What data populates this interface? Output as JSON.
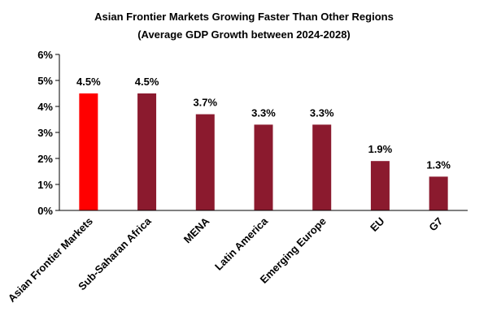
{
  "chart_data": {
    "type": "bar",
    "title": "Asian Frontier Markets Growing Faster Than Other Regions",
    "subtitle": "(Average GDP Growth between 2024-2028)",
    "categories": [
      "Asian Frontier Markets",
      "Sub-Saharan Africa",
      "MENA",
      "Latin America",
      "Emerging Europe",
      "EU",
      "G7"
    ],
    "values": [
      4.5,
      4.5,
      3.7,
      3.3,
      3.3,
      1.9,
      1.3
    ],
    "data_labels": [
      "4.5%",
      "4.5%",
      "3.7%",
      "3.3%",
      "3.3%",
      "1.9%",
      "1.3%"
    ],
    "ylim": [
      0,
      6
    ],
    "yticks": [
      0,
      1,
      2,
      3,
      4,
      5,
      6
    ],
    "ytick_labels": [
      "0%",
      "1%",
      "2%",
      "3%",
      "4%",
      "5%",
      "6%"
    ],
    "xlabel": "",
    "ylabel": "",
    "grid": false,
    "highlight_color": "#ff0000",
    "bar_color": "#8b1a2e"
  }
}
